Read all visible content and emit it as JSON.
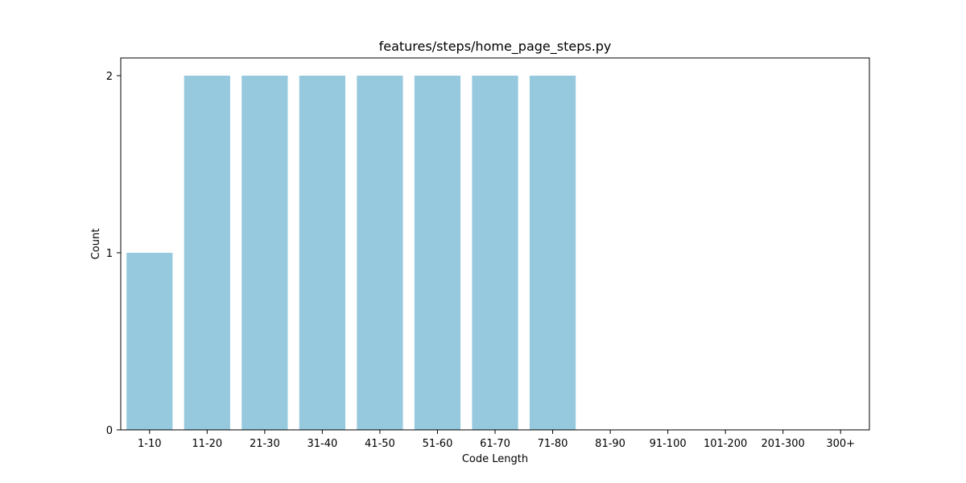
{
  "chart_data": {
    "type": "bar",
    "title": "features/steps/home_page_steps.py",
    "xlabel": "Code Length",
    "ylabel": "Count",
    "categories": [
      "1-10",
      "11-20",
      "21-30",
      "31-40",
      "41-50",
      "51-60",
      "61-70",
      "71-80",
      "81-90",
      "91-100",
      "101-200",
      "201-300",
      "300+"
    ],
    "values": [
      1,
      2,
      2,
      2,
      2,
      2,
      2,
      2,
      0,
      0,
      0,
      0,
      0
    ],
    "ylim": [
      0,
      2.1
    ],
    "yticks": [
      0,
      1,
      2
    ],
    "bar_color": "#96c9de",
    "grid": false,
    "legend": "none"
  }
}
